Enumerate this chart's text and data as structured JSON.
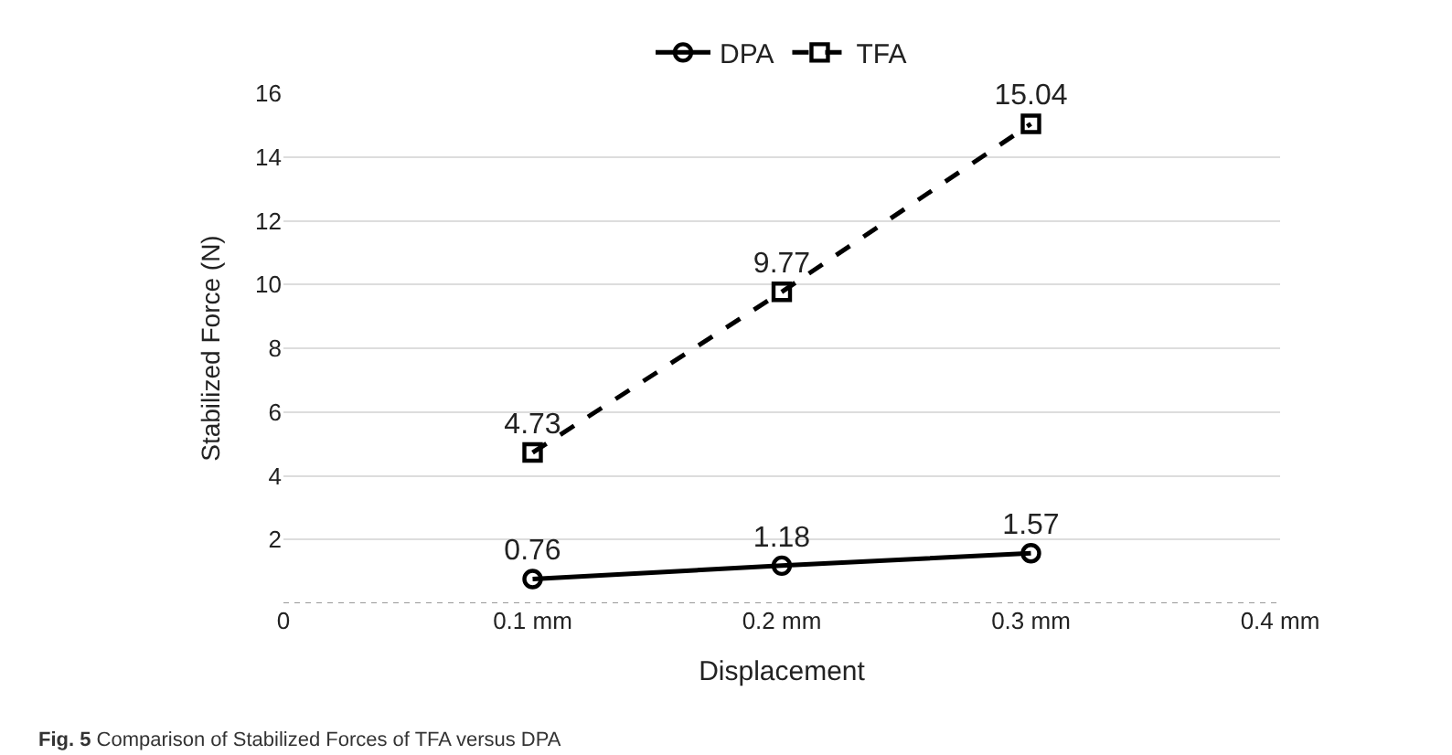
{
  "chart_data": {
    "type": "line",
    "xlabel": "Displacement",
    "ylabel": "Stabilized Force (N)",
    "x": [
      0.1,
      0.2,
      0.3
    ],
    "series": [
      {
        "name": "DPA",
        "color": "#000000",
        "values": [
          0.76,
          1.18,
          1.57
        ],
        "marker": "circle",
        "line_style": "solid"
      },
      {
        "name": "TFA",
        "color": "#000000",
        "values": [
          4.73,
          9.77,
          15.04
        ],
        "marker": "square",
        "line_style": "dashed"
      }
    ],
    "xlim": [
      0,
      0.4
    ],
    "xticks": [
      0,
      {
        "value": 0.1,
        "label": "0.1 mm"
      },
      {
        "value": 0.2,
        "label": "0.2 mm"
      },
      {
        "value": 0.3,
        "label": "0.3 mm"
      },
      {
        "value": 0.4,
        "label": "0.4 mm"
      }
    ],
    "ylim": [
      0,
      16
    ],
    "yticks": [
      {
        "value": 0,
        "label": null
      },
      2,
      4,
      6,
      8,
      10,
      12,
      14,
      16
    ],
    "grid": "y",
    "legend": "top",
    "data_labels": true,
    "annotations": [
      "Fig. 5 Comparison of Stabilized Forces of TFA versus DPA"
    ]
  }
}
